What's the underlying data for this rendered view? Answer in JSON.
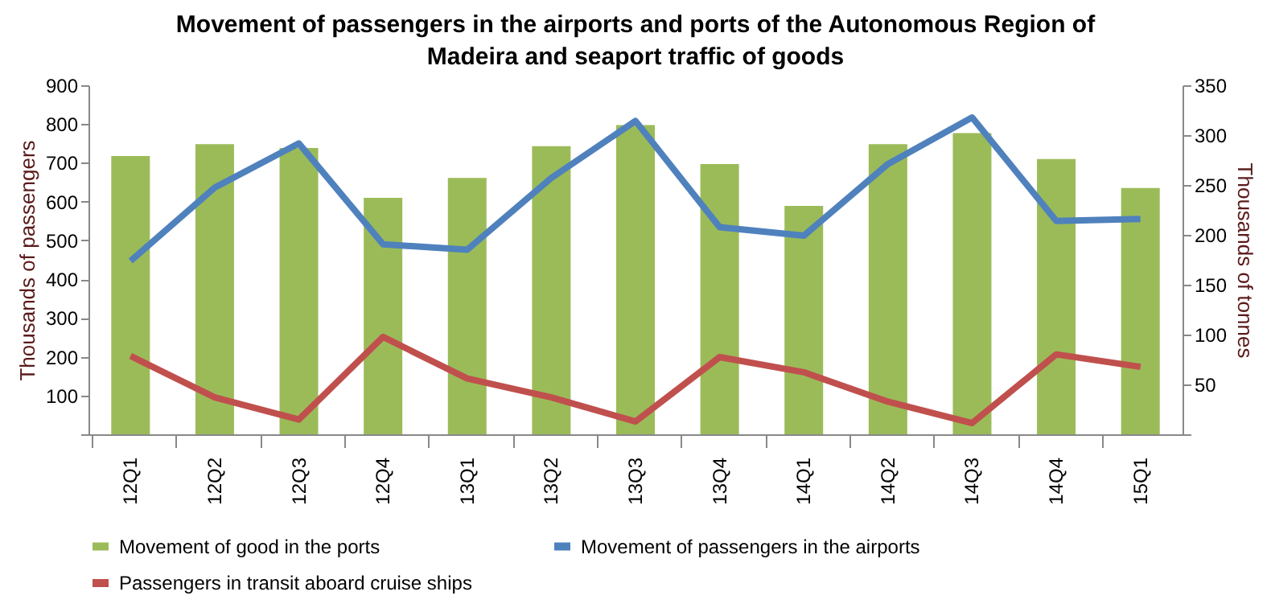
{
  "chart_data": {
    "type": "bar",
    "title": "Movement of passengers in the airports and ports of the Autonomous Region of Madeira and seaport traffic of goods",
    "ylabel": "Thousands of passengers",
    "y2label": "Thousands of tonnes",
    "categories": [
      "12Q1",
      "12Q2",
      "12Q3",
      "12Q4",
      "13Q1",
      "13Q2",
      "13Q3",
      "13Q4",
      "14Q1",
      "14Q2",
      "14Q3",
      "14Q4",
      "15Q1"
    ],
    "series": [
      {
        "name": "Movement of good in the ports",
        "axis": "y2",
        "color": "#9bbb59",
        "values": [
          279,
          291,
          287,
          237,
          257,
          289,
          310,
          271,
          229,
          291,
          302,
          276,
          247
        ]
      },
      {
        "name": "Movement of passengers in the airports",
        "type": "line",
        "color": "#4f81bd",
        "values": [
          447,
          636,
          750,
          490,
          476,
          661,
          808,
          534,
          512,
          697,
          817,
          550,
          555
        ]
      },
      {
        "name": "Passengers in transit aboard cruise ships",
        "type": "line",
        "color": "#c0504d",
        "values": [
          202,
          95,
          38,
          251,
          144,
          95,
          33,
          199,
          160,
          84,
          29,
          206,
          174
        ]
      }
    ],
    "ylim": [
      0,
      900
    ],
    "yticks": [
      {
        "value": 0,
        "label": null
      },
      100,
      200,
      300,
      400,
      500,
      600,
      700,
      800,
      900
    ],
    "y2lim": [
      0,
      350
    ],
    "y2ticks": [
      {
        "value": 0,
        "label": null
      },
      50,
      100,
      150,
      200,
      250,
      300,
      350
    ],
    "grid": false,
    "legend": "bottom",
    "line_style": "solid",
    "marker": "none"
  }
}
